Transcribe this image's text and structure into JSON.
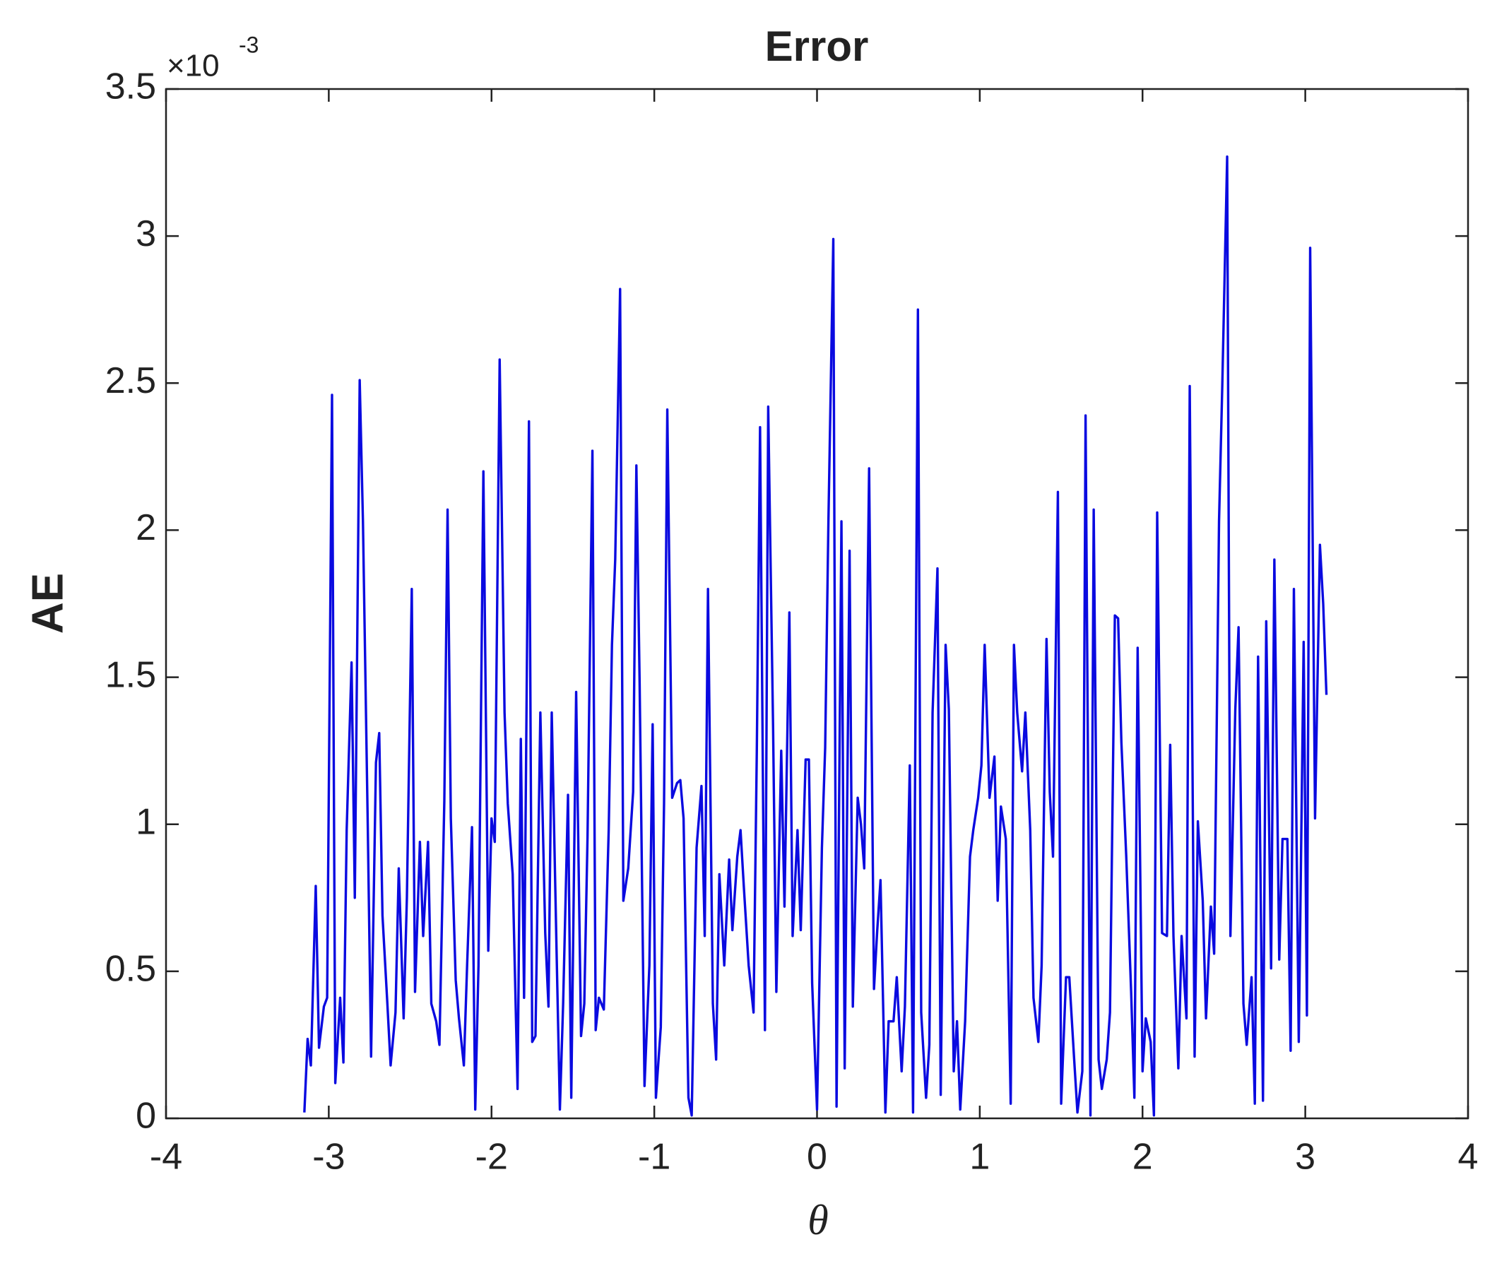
{
  "chart_data": {
    "type": "line",
    "title": "Error",
    "x_label": "θ",
    "y_label": "AE",
    "y_multiplier": "×10",
    "y_multiplier_exponent": "-3",
    "color": "#0a0ae0",
    "xlim": [
      -4,
      4
    ],
    "xticks": [
      -4,
      -3,
      -2,
      -1,
      0,
      1,
      2,
      3,
      4
    ],
    "ylim": [
      0,
      3.5
    ],
    "yticks": [
      0,
      0.5,
      1,
      1.5,
      2,
      2.5,
      3,
      3.5
    ],
    "x": [
      -3.15,
      -3.13,
      -3.11,
      -3.08,
      -3.06,
      -3.03,
      -3.01,
      -2.98,
      -2.96,
      -2.93,
      -2.91,
      -2.89,
      -2.86,
      -2.84,
      -2.81,
      -2.79,
      -2.76,
      -2.74,
      -2.71,
      -2.69,
      -2.67,
      -2.64,
      -2.62,
      -2.59,
      -2.57,
      -2.54,
      -2.52,
      -2.49,
      -2.47,
      -2.44,
      -2.42,
      -2.39,
      -2.37,
      -2.34,
      -2.32,
      -2.29,
      -2.27,
      -2.25,
      -2.22,
      -2.2,
      -2.17,
      -2.15,
      -2.12,
      -2.1,
      -2.08,
      -2.05,
      -2.02,
      -2.0,
      -1.98,
      -1.95,
      -1.92,
      -1.9,
      -1.87,
      -1.84,
      -1.82,
      -1.8,
      -1.77,
      -1.75,
      -1.73,
      -1.7,
      -1.67,
      -1.65,
      -1.63,
      -1.6,
      -1.58,
      -1.56,
      -1.53,
      -1.51,
      -1.48,
      -1.45,
      -1.43,
      -1.41,
      -1.38,
      -1.36,
      -1.34,
      -1.31,
      -1.28,
      -1.26,
      -1.24,
      -1.21,
      -1.19,
      -1.16,
      -1.13,
      -1.11,
      -1.09,
      -1.06,
      -1.03,
      -1.01,
      -0.99,
      -0.96,
      -0.94,
      -0.92,
      -0.89,
      -0.86,
      -0.84,
      -0.82,
      -0.79,
      -0.77,
      -0.74,
      -0.71,
      -0.69,
      -0.67,
      -0.64,
      -0.62,
      -0.6,
      -0.57,
      -0.54,
      -0.52,
      -0.49,
      -0.47,
      -0.45,
      -0.42,
      -0.39,
      -0.37,
      -0.35,
      -0.32,
      -0.3,
      -0.27,
      -0.25,
      -0.22,
      -0.2,
      -0.17,
      -0.15,
      -0.12,
      -0.1,
      -0.07,
      -0.05,
      -0.03,
      0,
      0.03,
      0.05,
      0.07,
      0.1,
      0.12,
      0.15,
      0.17,
      0.2,
      0.22,
      0.25,
      0.27,
      0.29,
      0.32,
      0.35,
      0.37,
      0.39,
      0.42,
      0.44,
      0.47,
      0.49,
      0.52,
      0.54,
      0.57,
      0.59,
      0.62,
      0.64,
      0.67,
      0.69,
      0.71,
      0.74,
      0.76,
      0.79,
      0.81,
      0.84,
      0.86,
      0.88,
      0.91,
      0.94,
      0.96,
      0.99,
      1.01,
      1.03,
      1.06,
      1.09,
      1.11,
      1.13,
      1.16,
      1.19,
      1.21,
      1.23,
      1.26,
      1.28,
      1.31,
      1.33,
      1.36,
      1.38,
      1.41,
      1.43,
      1.45,
      1.48,
      1.5,
      1.53,
      1.55,
      1.58,
      1.6,
      1.63,
      1.65,
      1.68,
      1.7,
      1.73,
      1.75,
      1.78,
      1.8,
      1.83,
      1.85,
      1.87,
      1.9,
      1.93,
      1.95,
      1.97,
      2.0,
      2.02,
      2.05,
      2.07,
      2.09,
      2.12,
      2.15,
      2.17,
      2.19,
      2.22,
      2.24,
      2.27,
      2.29,
      2.32,
      2.34,
      2.37,
      2.39,
      2.42,
      2.44,
      2.47,
      2.49,
      2.52,
      2.54,
      2.57,
      2.59,
      2.62,
      2.64,
      2.67,
      2.69,
      2.71,
      2.74,
      2.76,
      2.79,
      2.81,
      2.84,
      2.86,
      2.89,
      2.91,
      2.93,
      2.96,
      2.99,
      3.01,
      3.03,
      3.06,
      3.09,
      3.11,
      3.13
    ],
    "values": [
      0.02,
      0.27,
      0.18,
      0.79,
      0.24,
      0.38,
      0.41,
      2.46,
      0.12,
      0.41,
      0.19,
      0.98,
      1.55,
      0.75,
      2.51,
      2.03,
      0.98,
      0.21,
      1.21,
      1.31,
      0.69,
      0.39,
      0.18,
      0.36,
      0.85,
      0.34,
      0.75,
      1.8,
      0.43,
      0.94,
      0.62,
      0.94,
      0.39,
      0.33,
      0.25,
      1.08,
      2.07,
      1.02,
      0.47,
      0.34,
      0.18,
      0.52,
      0.99,
      0.03,
      0.52,
      2.2,
      0.57,
      1.02,
      0.94,
      2.58,
      1.38,
      1.07,
      0.83,
      0.1,
      1.29,
      0.41,
      2.37,
      0.26,
      0.28,
      1.38,
      0.63,
      0.38,
      1.38,
      0.56,
      0.03,
      0.39,
      1.1,
      0.07,
      1.45,
      0.28,
      0.39,
      0.96,
      2.27,
      0.3,
      0.41,
      0.37,
      0.98,
      1.61,
      1.9,
      2.82,
      0.74,
      0.85,
      1.11,
      2.22,
      1.48,
      0.11,
      0.52,
      1.34,
      0.07,
      0.31,
      1.07,
      2.41,
      1.09,
      1.14,
      1.15,
      1.02,
      0.07,
      0.01,
      0.92,
      1.13,
      0.62,
      1.8,
      0.39,
      0.2,
      0.83,
      0.52,
      0.88,
      0.64,
      0.89,
      0.98,
      0.79,
      0.52,
      0.36,
      1.25,
      2.35,
      0.3,
      2.42,
      1.33,
      0.43,
      1.25,
      0.72,
      1.72,
      0.62,
      0.98,
      0.64,
      1.22,
      1.22,
      0.46,
      0.03,
      0.92,
      1.26,
      2.03,
      2.99,
      0.04,
      2.03,
      0.17,
      1.93,
      0.38,
      1.09,
      1.0,
      0.85,
      2.21,
      0.44,
      0.64,
      0.81,
      0.02,
      0.33,
      0.33,
      0.48,
      0.16,
      0.38,
      1.2,
      0.02,
      2.75,
      0.36,
      0.07,
      0.25,
      1.38,
      1.87,
      0.08,
      1.61,
      1.39,
      0.16,
      0.33,
      0.03,
      0.33,
      0.89,
      0.98,
      1.09,
      1.2,
      1.61,
      1.09,
      1.23,
      0.74,
      1.06,
      0.95,
      0.05,
      1.61,
      1.38,
      1.18,
      1.38,
      0.98,
      0.41,
      0.26,
      0.52,
      1.63,
      1.11,
      0.89,
      2.13,
      0.05,
      0.48,
      0.48,
      0.2,
      0.02,
      0.16,
      2.39,
      0.01,
      2.07,
      0.2,
      0.1,
      0.2,
      0.36,
      1.71,
      1.7,
      1.28,
      0.89,
      0.43,
      0.07,
      1.6,
      0.16,
      0.34,
      0.26,
      0.01,
      2.06,
      0.63,
      0.62,
      1.27,
      0.62,
      0.17,
      0.62,
      0.34,
      2.49,
      0.21,
      1.01,
      0.74,
      0.34,
      0.72,
      0.56,
      2.03,
      2.49,
      3.27,
      0.62,
      1.39,
      1.67,
      0.39,
      0.25,
      0.48,
      0.05,
      1.57,
      0.06,
      1.69,
      0.51,
      1.9,
      0.54,
      0.95,
      0.95,
      0.23,
      1.8,
      0.26,
      1.62,
      0.35,
      2.96,
      1.02,
      1.95,
      1.75,
      1.44
    ]
  }
}
